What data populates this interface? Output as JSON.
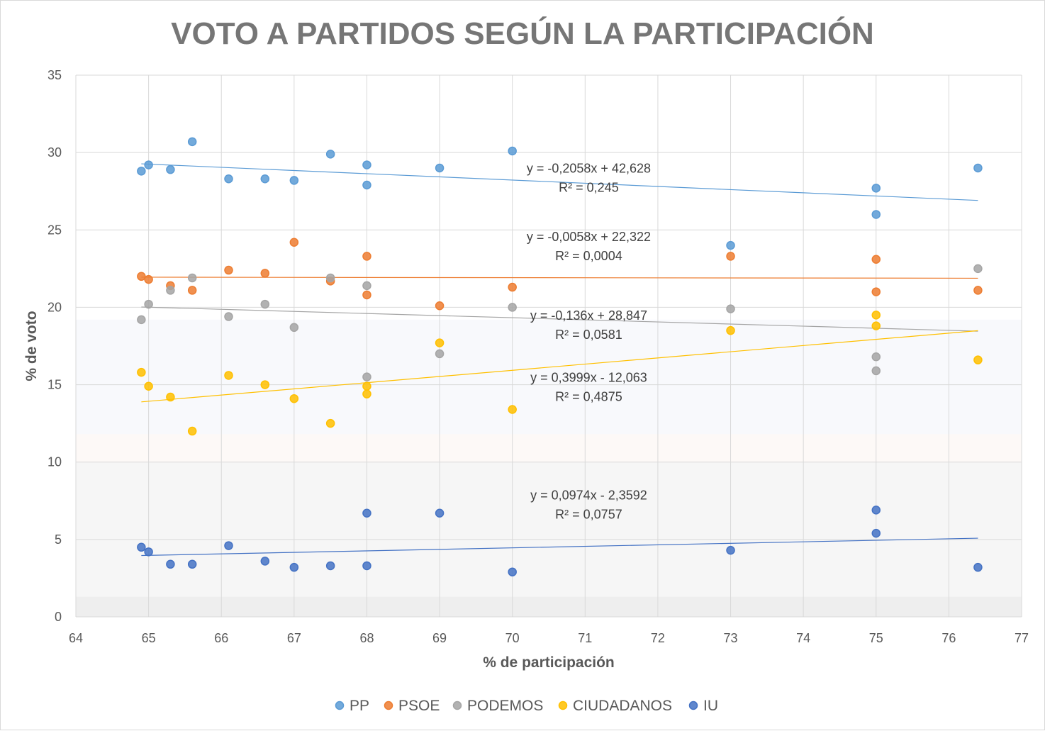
{
  "chart_data": {
    "type": "scatter",
    "title": "VOTO A PARTIDOS SEGÚN LA PARTICIPACIÓN",
    "xlabel": "% de participación",
    "ylabel": "% de voto",
    "xlim": [
      64,
      77
    ],
    "ylim": [
      0,
      35
    ],
    "xticks": [
      "64",
      "65",
      "66",
      "67",
      "68",
      "69",
      "70",
      "71",
      "72",
      "73",
      "74",
      "75",
      "76",
      "77"
    ],
    "yticks": [
      "0",
      "5",
      "10",
      "15",
      "20",
      "25",
      "30",
      "35"
    ],
    "grid": true,
    "legend_position": "bottom",
    "series": [
      {
        "name": "PP",
        "color": "#5b9bd5",
        "points": [
          [
            64.9,
            28.8
          ],
          [
            65,
            29.2
          ],
          [
            65.3,
            28.9
          ],
          [
            65.6,
            30.7
          ],
          [
            66.1,
            28.3
          ],
          [
            66.6,
            28.3
          ],
          [
            67,
            28.2
          ],
          [
            67.5,
            29.9
          ],
          [
            68,
            29.2
          ],
          [
            68,
            27.9
          ],
          [
            69,
            29.0
          ],
          [
            70,
            30.1
          ],
          [
            73,
            24.0
          ],
          [
            75,
            27.7
          ],
          [
            75,
            26.0
          ],
          [
            76.4,
            29.0
          ]
        ],
        "trendline": {
          "slope": -0.2058,
          "intercept": 42.628,
          "equation": "y = -0,2058x + 42,628",
          "r2": "R² = 0,245"
        }
      },
      {
        "name": "PSOE",
        "color": "#ed7d31",
        "points": [
          [
            64.9,
            22.0
          ],
          [
            65,
            21.8
          ],
          [
            65.3,
            21.4
          ],
          [
            65.6,
            21.1
          ],
          [
            66.1,
            22.4
          ],
          [
            66.6,
            22.2
          ],
          [
            67,
            24.2
          ],
          [
            67.5,
            21.7
          ],
          [
            68,
            23.3
          ],
          [
            68,
            20.8
          ],
          [
            69,
            20.1
          ],
          [
            70,
            21.3
          ],
          [
            73,
            23.3
          ],
          [
            75,
            23.1
          ],
          [
            75,
            21.0
          ],
          [
            76.4,
            21.1
          ]
        ],
        "trendline": {
          "slope": -0.0058,
          "intercept": 22.322,
          "equation": "y = -0,0058x + 22,322",
          "r2": "R² = 0,0004"
        }
      },
      {
        "name": "PODEMOS",
        "color": "#a5a5a5",
        "points": [
          [
            64.9,
            19.2
          ],
          [
            65,
            20.2
          ],
          [
            65.3,
            21.1
          ],
          [
            65.6,
            21.9
          ],
          [
            66.1,
            19.4
          ],
          [
            66.6,
            20.2
          ],
          [
            67,
            18.7
          ],
          [
            67.5,
            21.9
          ],
          [
            68,
            21.4
          ],
          [
            68,
            15.5
          ],
          [
            69,
            17.0
          ],
          [
            70,
            20.0
          ],
          [
            73,
            19.9
          ],
          [
            75,
            16.8
          ],
          [
            75,
            15.9
          ],
          [
            76.4,
            22.5
          ]
        ],
        "trendline": {
          "slope": -0.136,
          "intercept": 28.847,
          "equation": "y = -0,136x + 28,847",
          "r2": "R² = 0,0581"
        }
      },
      {
        "name": "CIUDADANOS",
        "color": "#ffc000",
        "points": [
          [
            64.9,
            15.8
          ],
          [
            65,
            14.9
          ],
          [
            65.3,
            14.2
          ],
          [
            65.6,
            12.0
          ],
          [
            66.1,
            15.6
          ],
          [
            66.6,
            15.0
          ],
          [
            67,
            14.1
          ],
          [
            67.5,
            12.5
          ],
          [
            68,
            14.9
          ],
          [
            68,
            14.4
          ],
          [
            69,
            17.7
          ],
          [
            70,
            13.4
          ],
          [
            73,
            18.5
          ],
          [
            75,
            19.5
          ],
          [
            75,
            18.8
          ],
          [
            76.4,
            16.6
          ]
        ],
        "trendline": {
          "slope": 0.3999,
          "intercept": -12.063,
          "equation": "y = 0,3999x - 12,063",
          "r2": "R² = 0,4875"
        }
      },
      {
        "name": "IU",
        "color": "#4472c4",
        "points": [
          [
            64.9,
            4.5
          ],
          [
            65,
            4.2
          ],
          [
            65.3,
            3.4
          ],
          [
            65.6,
            3.4
          ],
          [
            66.1,
            4.6
          ],
          [
            66.6,
            3.6
          ],
          [
            67,
            3.2
          ],
          [
            67.5,
            3.3
          ],
          [
            68,
            6.7
          ],
          [
            68,
            3.3
          ],
          [
            69,
            6.7
          ],
          [
            70,
            2.9
          ],
          [
            73,
            4.3
          ],
          [
            75,
            6.9
          ],
          [
            75,
            5.4
          ],
          [
            76.4,
            3.2
          ]
        ],
        "trendline": {
          "slope": 0.0974,
          "intercept": -2.3592,
          "equation": "y = 0,0974x - 2,3592",
          "r2": "R² = 0,0757"
        }
      }
    ]
  }
}
